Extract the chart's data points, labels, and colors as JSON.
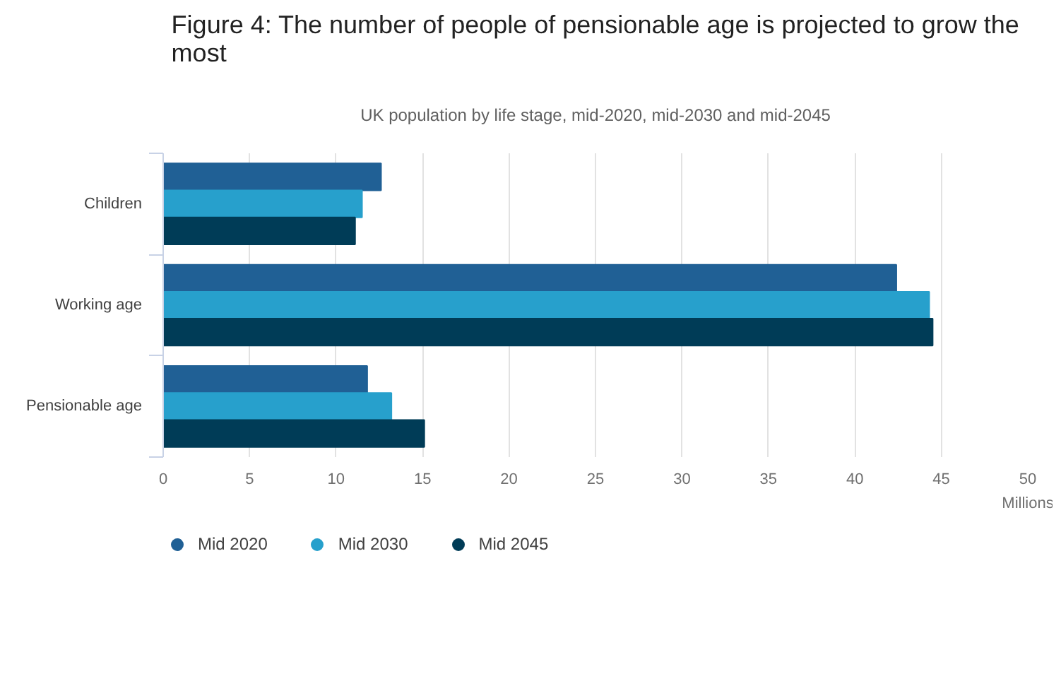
{
  "chart_data": {
    "type": "bar",
    "orientation": "horizontal",
    "title": "Figure 4: The number of people of pensionable age is projected to grow the most",
    "subtitle": "UK population by life stage, mid-2020, mid-2030 and mid-2045",
    "xlabel": "Millions",
    "categories": [
      "Children",
      "Working age",
      "Pensionable age"
    ],
    "series": [
      {
        "name": "Mid 2020",
        "color": "#206095",
        "values": [
          12.6,
          42.4,
          11.8
        ]
      },
      {
        "name": "Mid 2030",
        "color": "#27a0cc",
        "values": [
          11.5,
          44.3,
          13.2
        ]
      },
      {
        "name": "Mid 2045",
        "color": "#003c57",
        "values": [
          11.1,
          44.5,
          15.1
        ]
      }
    ],
    "xlim": [
      0,
      50
    ],
    "xticks": [
      0,
      5,
      10,
      15,
      20,
      25,
      30,
      35,
      40,
      45,
      50
    ],
    "grid": "x",
    "legend": "bottom left"
  }
}
